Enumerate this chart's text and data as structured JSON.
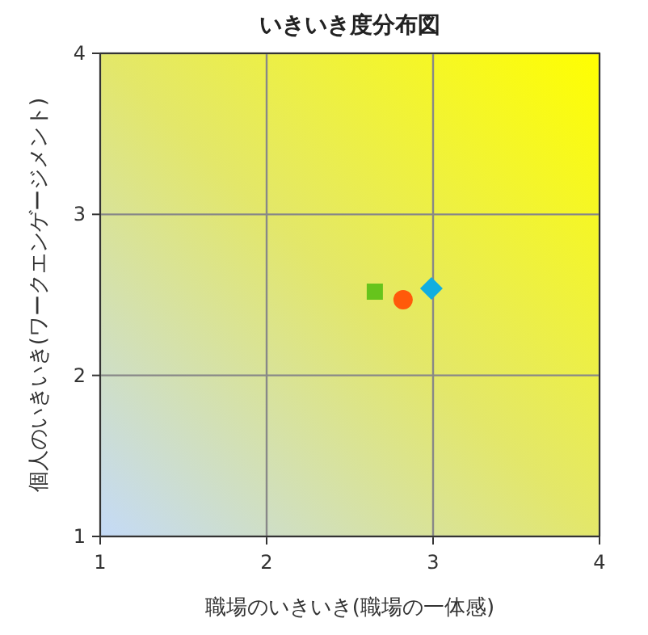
{
  "chart_data": {
    "type": "scatter",
    "title": "いきいき度分布図",
    "xlabel": "職場のいきいき(職場の一体感)",
    "ylabel": "個人のいきいき(ワークエンゲージメント)",
    "xlim": [
      1,
      4
    ],
    "ylim": [
      1,
      4
    ],
    "xticks": [
      1,
      2,
      3,
      4
    ],
    "yticks": [
      1,
      2,
      3,
      4
    ],
    "grid": true,
    "series": [
      {
        "color": "#66c41c",
        "marker": "square",
        "x": [
          2.65
        ],
        "values": [
          2.52
        ]
      },
      {
        "color": "#ff5a0a",
        "marker": "circle",
        "x": [
          2.82
        ],
        "values": [
          2.47
        ]
      },
      {
        "color": "#12aee0",
        "marker": "diamond",
        "x": [
          2.99
        ],
        "values": [
          2.54
        ]
      }
    ]
  }
}
